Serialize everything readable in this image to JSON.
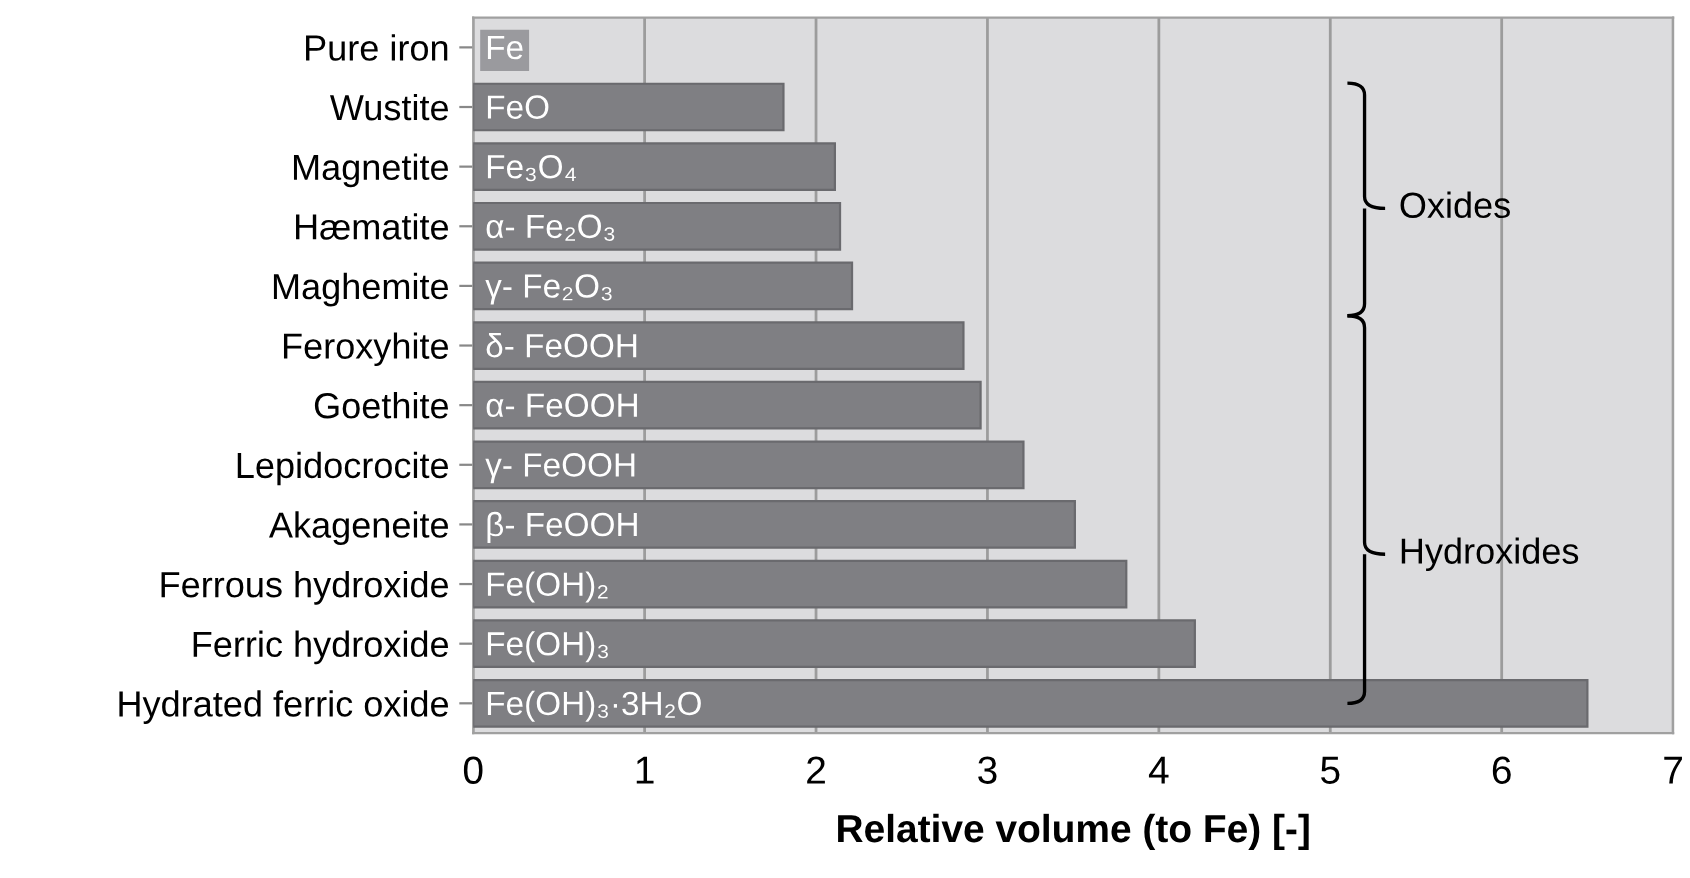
{
  "chart_data": {
    "type": "bar",
    "orientation": "horizontal",
    "xlabel": "Relative volume (to Fe) [-]",
    "categories": [
      "Pure iron",
      "Wustite",
      "Magnetite",
      "Hæmatite",
      "Maghemite",
      "Feroxyhite",
      "Goethite",
      "Lepidocrocite",
      "Akageneite",
      "Ferrous hydroxide",
      "Ferric hydroxide",
      "Hydrated ferric oxide"
    ],
    "values": [
      null,
      1.81,
      2.11,
      2.14,
      2.21,
      2.86,
      2.96,
      3.21,
      3.51,
      3.81,
      4.21,
      6.5
    ],
    "color": "#7f7f83",
    "xlim": [
      0,
      7
    ],
    "xticks": [
      0,
      1,
      2,
      3,
      4,
      5,
      6,
      7
    ],
    "grid": "x",
    "annotations": [
      "Fe",
      "FeO",
      "Fe₃O₄",
      "α- Fe₂O₃",
      "γ- Fe₂O₃",
      "δ- FeOOH",
      "α- FeOOH",
      "γ- FeOOH",
      "β- FeOOH",
      "Fe(OH)₂",
      "Fe(OH)₃",
      "Fe(OH)₃·3H₂O",
      "Oxides",
      "Hydroxides"
    ]
  }
}
